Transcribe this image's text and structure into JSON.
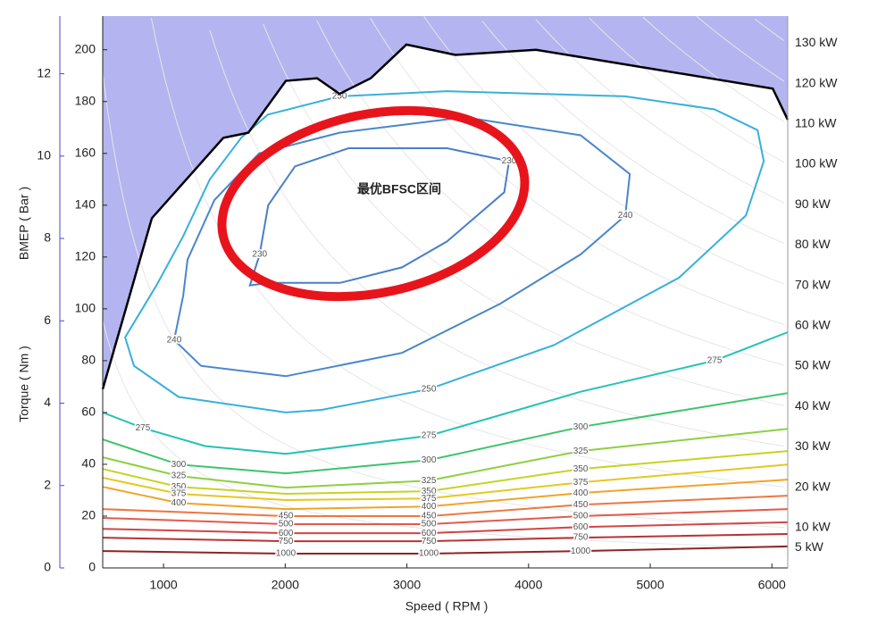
{
  "chart_data": {
    "type": "contour",
    "x_label": "Speed ( RPM )",
    "y_label": "Torque ( Nm )",
    "y2_label": "BMEP ( Bar )",
    "y2_color": "#4848d0",
    "xlim": [
      500,
      6130
    ],
    "ylim": [
      0,
      213
    ],
    "xticks": [
      1000,
      2000,
      3000,
      4000,
      5000,
      6000
    ],
    "yticks": [
      0,
      20,
      40,
      60,
      80,
      100,
      120,
      140,
      160,
      180,
      200
    ],
    "y2lim": [
      0,
      13.4
    ],
    "y2ticks": [
      0,
      2,
      4,
      6,
      8,
      10,
      12
    ],
    "power_ticks": [
      {
        "value": 130,
        "label": "130 kW"
      },
      {
        "value": 120,
        "label": "120 kW"
      },
      {
        "value": 110,
        "label": "110 kW"
      },
      {
        "value": 100,
        "label": "100 kW"
      },
      {
        "value": 90,
        "label": "90 kW"
      },
      {
        "value": 80,
        "label": "80 kW"
      },
      {
        "value": 70,
        "label": "70 kW"
      },
      {
        "value": 60,
        "label": "60 kW"
      },
      {
        "value": 50,
        "label": "50 kW"
      },
      {
        "value": 40,
        "label": "40 kW"
      },
      {
        "value": 30,
        "label": "30 kW"
      },
      {
        "value": 20,
        "label": "20 kW"
      },
      {
        "value": 10,
        "label": "10 kW"
      },
      {
        "value": 5,
        "label": "5 kW"
      }
    ],
    "max_torque": {
      "color": "#000000",
      "fill": "#b4b4f0",
      "x": [
        500,
        904,
        1491,
        1697,
        2005,
        2262,
        2446,
        2703,
        2996,
        3400,
        4061,
        6007,
        6130
      ],
      "y": [
        69,
        135,
        166,
        168,
        188,
        189,
        183,
        189,
        202,
        198,
        200,
        185,
        173
      ]
    },
    "contours": [
      {
        "level": 230,
        "color": "#4a7fc8",
        "closed": true,
        "x": [
          1710,
          1790,
          1860,
          2080,
          2520,
          3330,
          3840,
          3800,
          3330,
          2960,
          2450,
          1860
        ],
        "y": [
          109,
          121,
          140,
          155,
          162,
          162,
          157,
          145,
          126,
          116,
          110,
          110
        ]
      },
      {
        "level": 240,
        "color": "#4a86cc",
        "closed": true,
        "x": [
          1161,
          1087,
          1308,
          2005,
          2960,
          3767,
          4428,
          4795,
          4832,
          4428,
          3474,
          2446,
          1785,
          1418,
          1197
        ],
        "y": [
          105,
          88,
          78,
          74,
          83,
          102,
          121,
          136,
          152,
          167,
          174,
          168,
          160,
          142,
          119
        ]
      },
      {
        "level": 250,
        "color": "#38b0dc",
        "closed": true,
        "x": [
          1858,
          2446,
          3327,
          4795,
          5529,
          5882,
          5933,
          5786,
          5236,
          4208,
          3180,
          2299,
          2005,
          1124,
          757,
          684,
          941,
          1161,
          1381,
          1638
        ],
        "y": [
          175,
          182,
          184,
          182,
          177,
          169,
          157,
          136,
          112,
          86,
          69,
          61,
          60,
          66,
          78,
          89,
          109,
          128,
          150,
          166
        ]
      },
      {
        "level": 275,
        "color": "#26c2b4",
        "closed": false,
        "x": [
          500,
          830,
          1344,
          2005,
          3180,
          4428,
          5529,
          6130
        ],
        "y": [
          60,
          54,
          47,
          44,
          51,
          68,
          80,
          91
        ]
      },
      {
        "level": 300,
        "color": "#3cc46c",
        "closed": false,
        "x": [
          500,
          1124,
          2005,
          3180,
          4428,
          6130
        ],
        "y": [
          49.6,
          39.9,
          36.5,
          41.6,
          54.4,
          67.5
        ]
      },
      {
        "level": 325,
        "color": "#8cd040",
        "closed": false,
        "x": [
          500,
          1124,
          2005,
          3180,
          4428,
          6130
        ],
        "y": [
          42.7,
          35.5,
          31.0,
          33.7,
          45.1,
          53.7
        ]
      },
      {
        "level": 350,
        "color": "#c4d424",
        "closed": false,
        "x": [
          500,
          1124,
          2005,
          3180,
          4428,
          6130
        ],
        "y": [
          38.2,
          31.3,
          28.6,
          29.6,
          38.2,
          45.1
        ]
      },
      {
        "level": 375,
        "color": "#e4c820",
        "closed": false,
        "x": [
          500,
          1124,
          2005,
          3180,
          4428,
          6130
        ],
        "y": [
          34.8,
          28.6,
          26.2,
          26.8,
          33.0,
          39.9
        ]
      },
      {
        "level": 400,
        "color": "#f0a428",
        "closed": false,
        "x": [
          500,
          1124,
          2005,
          3180,
          4428,
          6130
        ],
        "y": [
          31.3,
          25.1,
          22.7,
          23.7,
          28.9,
          34.1
        ]
      },
      {
        "level": 450,
        "color": "#ec7840",
        "closed": false,
        "x": [
          500,
          2005,
          3180,
          4428,
          6130
        ],
        "y": [
          22.7,
          20.0,
          20.0,
          24.4,
          27.9
        ]
      },
      {
        "level": 500,
        "color": "#e25a4a",
        "closed": false,
        "x": [
          500,
          2005,
          3180,
          4428,
          6130
        ],
        "y": [
          19.3,
          16.9,
          16.9,
          20.0,
          22.7
        ]
      },
      {
        "level": 600,
        "color": "#d44444",
        "closed": false,
        "x": [
          500,
          2005,
          3180,
          4428,
          6130
        ],
        "y": [
          15.1,
          13.4,
          13.4,
          15.8,
          17.6
        ]
      },
      {
        "level": 750,
        "color": "#b43434",
        "closed": false,
        "x": [
          500,
          2005,
          3180,
          4428,
          6130
        ],
        "y": [
          11.7,
          10.3,
          10.3,
          11.7,
          13.1
        ]
      },
      {
        "level": 1000,
        "color": "#8c2424",
        "closed": false,
        "x": [
          500,
          2005,
          3180,
          4428,
          6130
        ],
        "y": [
          6.5,
          5.5,
          5.5,
          6.5,
          8.3
        ]
      }
    ],
    "annotation": "最优BFSC区间",
    "annotation_color": "#e8141c"
  }
}
